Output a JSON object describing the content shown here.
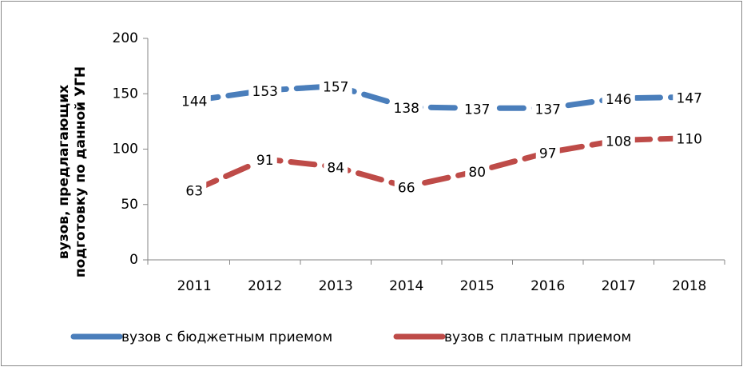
{
  "chart_data": {
    "type": "line",
    "ylabel": [
      "вузов, предлагающих",
      "подготовку по данной УГН"
    ],
    "categories": [
      "2011",
      "2012",
      "2013",
      "2014",
      "2015",
      "2016",
      "2017",
      "2018"
    ],
    "series": [
      {
        "name": "вузов с бюджетным приемом",
        "color": "#4a7ebb",
        "values": [
          144,
          153,
          157,
          138,
          137,
          137,
          146,
          147
        ]
      },
      {
        "name": "вузов с платным приемом",
        "color": "#be4b48",
        "values": [
          63,
          91,
          84,
          66,
          80,
          97,
          108,
          110
        ]
      }
    ],
    "ylim": [
      0,
      200
    ],
    "yticks": [
      0,
      50,
      100,
      150,
      200
    ],
    "data_labels": true,
    "legend": "bottom"
  }
}
